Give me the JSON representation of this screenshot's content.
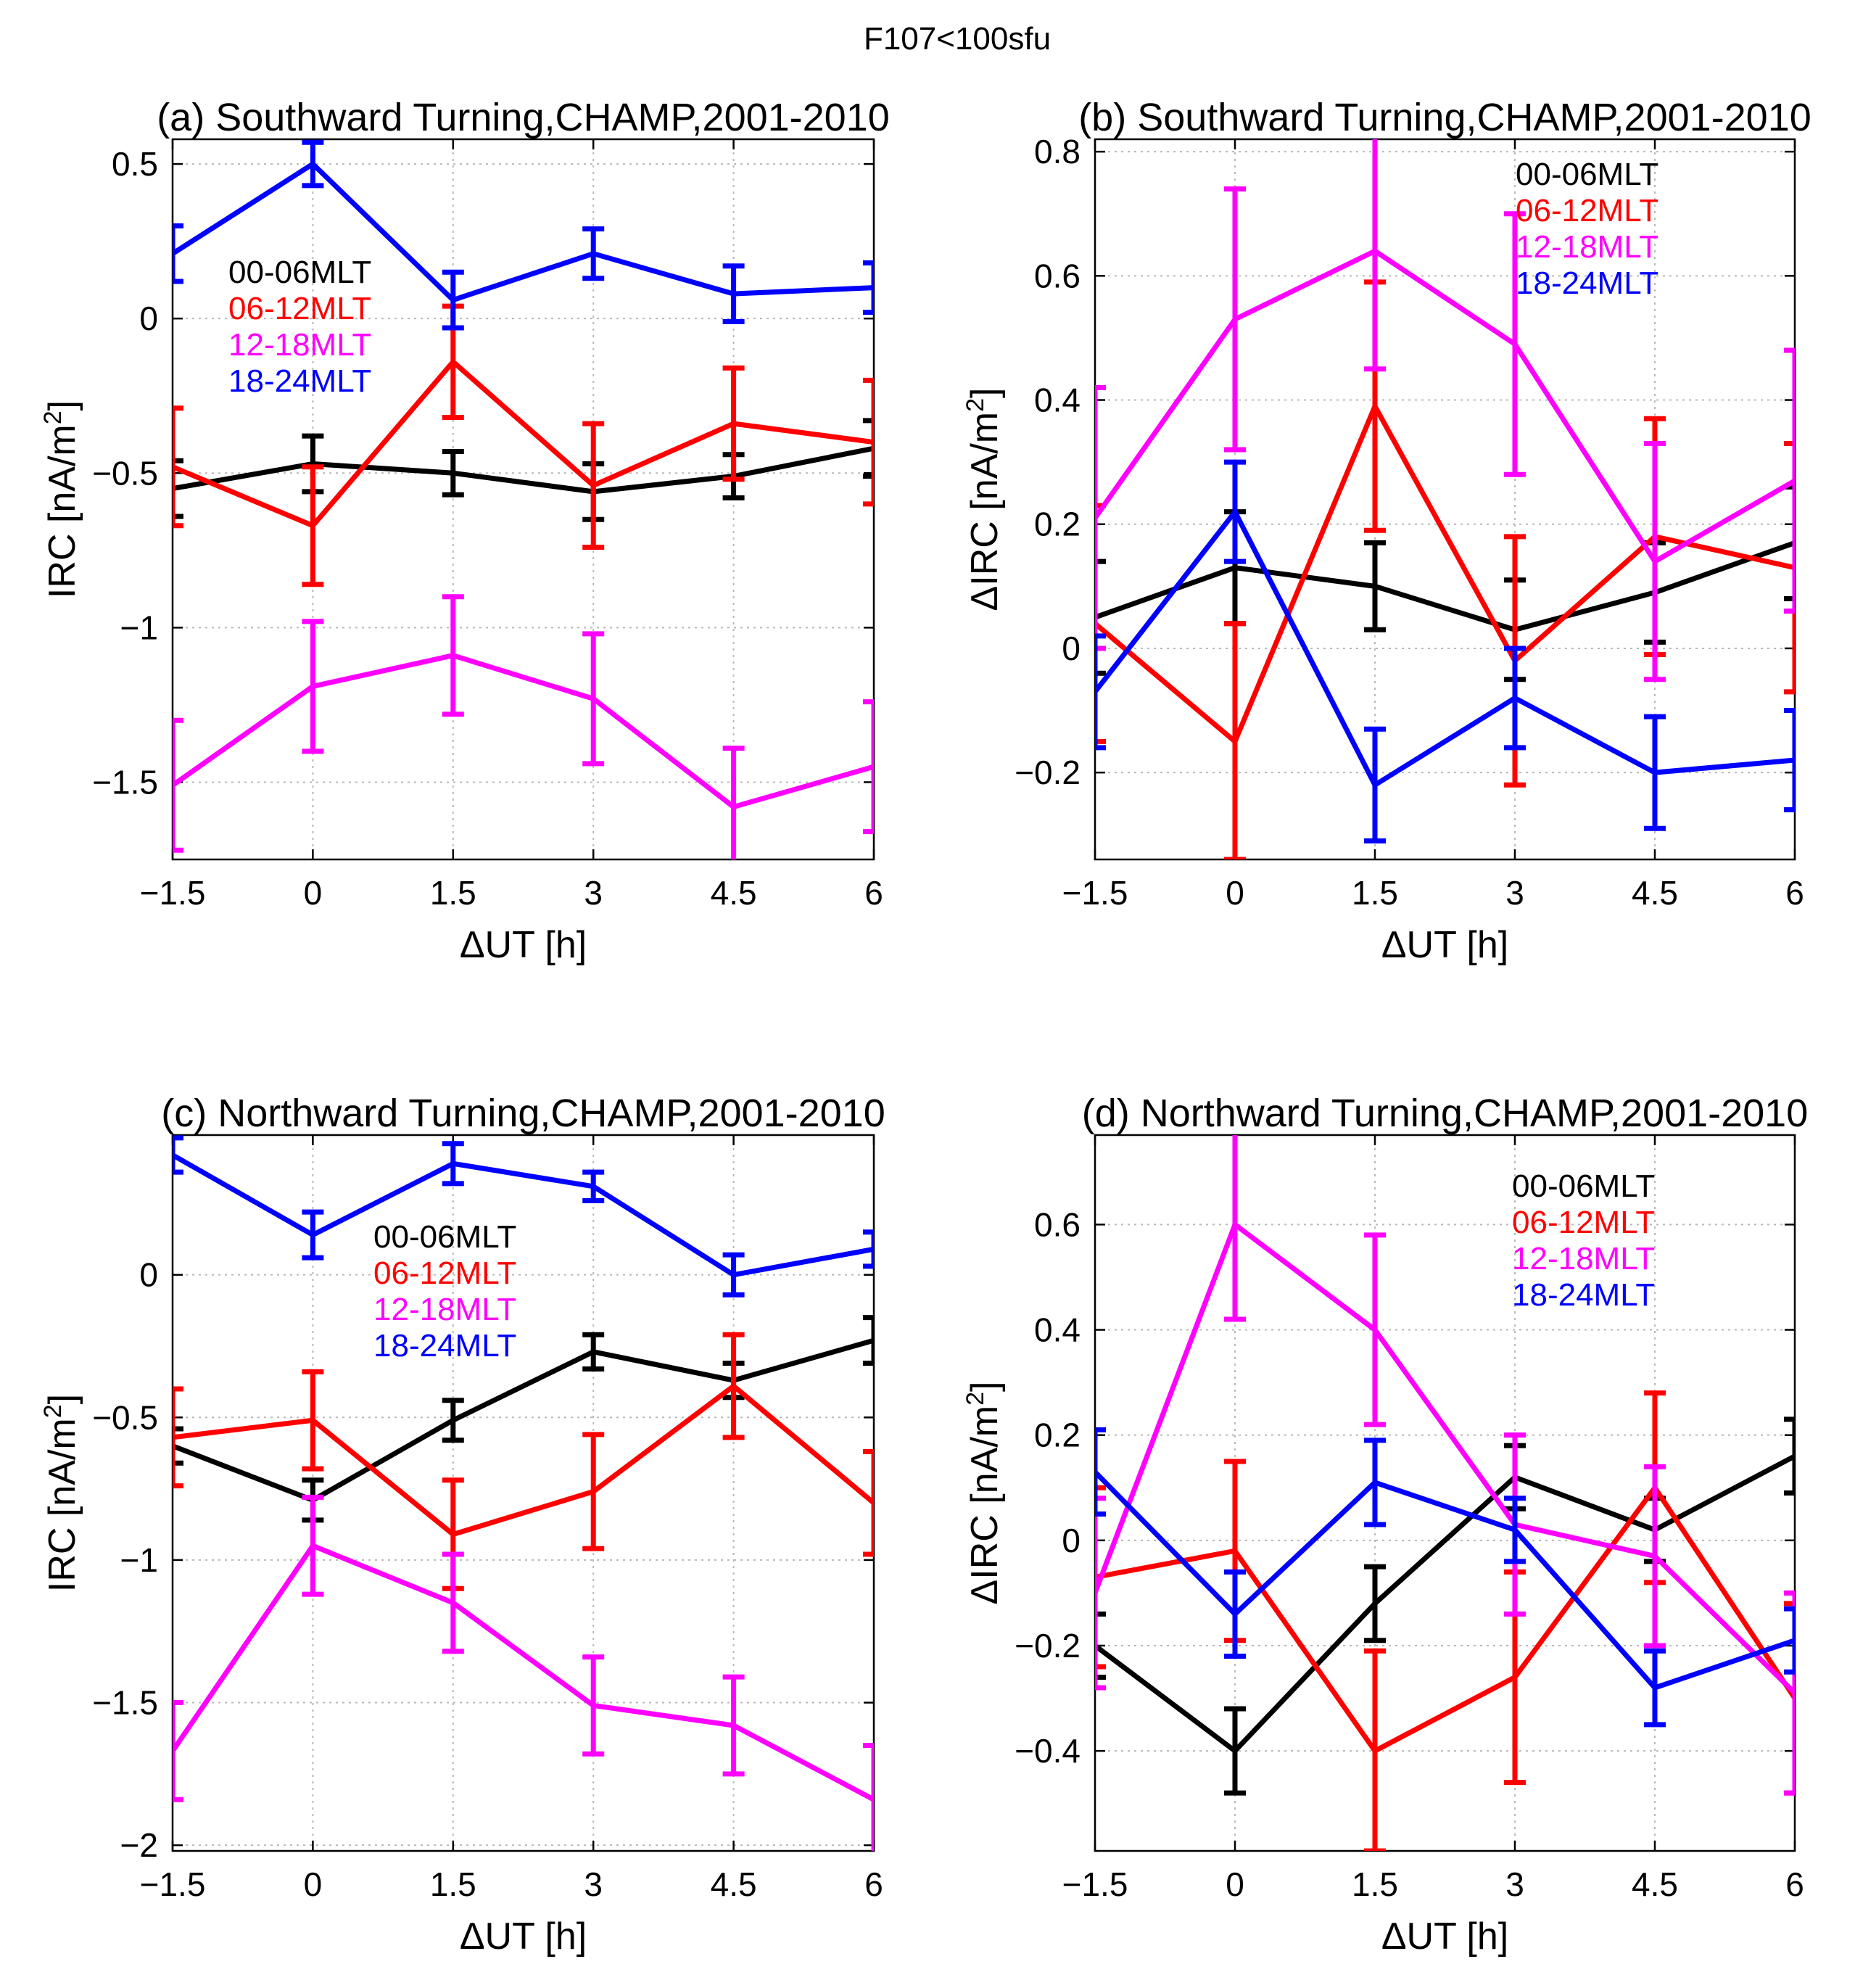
{
  "figure": {
    "suptitle": "F107<100sfu"
  },
  "legend_labels": [
    "00-06MLT",
    "06-12MLT",
    "12-18MLT",
    "18-24MLT"
  ],
  "series_colors": [
    "#000000",
    "#ff0000",
    "#ff00ff",
    "#0000ff"
  ],
  "chart_data": [
    {
      "id": "a",
      "type": "line",
      "title": "(a) Southward Turning,CHAMP,2001-2010",
      "xlabel": "ΔUT [h]",
      "ylabel_main": "IRC [nA/m",
      "ylabel_sup": "2",
      "ylabel_tail": "]",
      "x": [
        -1.5,
        0,
        1.5,
        3,
        4.5,
        6
      ],
      "xlim": [
        -1.5,
        6
      ],
      "ylim": [
        -1.75,
        0.58
      ],
      "xticks": [
        -1.5,
        0,
        1.5,
        3,
        4.5,
        6
      ],
      "xtick_labels": [
        "−1.5",
        "0",
        "1.5",
        "3",
        "4.5",
        "6"
      ],
      "yticks": [
        -1.5,
        -1,
        -0.5,
        0,
        0.5
      ],
      "ytick_labels": [
        "−1.5",
        "−1",
        "−0.5",
        "0",
        "0.5"
      ],
      "grid": true,
      "legend_location": "upper-left",
      "series": [
        {
          "name": "00-06MLT",
          "values": [
            -0.55,
            -0.47,
            -0.5,
            -0.56,
            -0.51,
            -0.42
          ],
          "err": [
            0.09,
            0.09,
            0.07,
            0.09,
            0.07,
            0.09
          ]
        },
        {
          "name": "06-12MLT",
          "values": [
            -0.48,
            -0.67,
            -0.14,
            -0.54,
            -0.34,
            -0.4
          ],
          "err": [
            0.19,
            0.19,
            0.18,
            0.2,
            0.18,
            0.2
          ]
        },
        {
          "name": "12-18MLT",
          "values": [
            -1.51,
            -1.19,
            -1.09,
            -1.23,
            -1.58,
            -1.45
          ],
          "err": [
            0.21,
            0.21,
            0.19,
            0.21,
            0.19,
            0.21
          ]
        },
        {
          "name": "18-24MLT",
          "values": [
            0.21,
            0.5,
            0.06,
            0.21,
            0.08,
            0.1
          ],
          "err": [
            0.09,
            0.07,
            0.09,
            0.08,
            0.09,
            0.08
          ]
        }
      ]
    },
    {
      "id": "b",
      "type": "line",
      "title": "(b) Southward Turning,CHAMP,2001-2010",
      "xlabel": "ΔUT [h]",
      "ylabel_main": "ΔIRC [nA/m",
      "ylabel_sup": "2",
      "ylabel_tail": "]",
      "x": [
        -1.5,
        0,
        1.5,
        3,
        4.5,
        6
      ],
      "xlim": [
        -1.5,
        6
      ],
      "ylim": [
        -0.34,
        0.82
      ],
      "xticks": [
        -1.5,
        0,
        1.5,
        3,
        4.5,
        6
      ],
      "xtick_labels": [
        "−1.5",
        "0",
        "1.5",
        "3",
        "4.5",
        "6"
      ],
      "yticks": [
        -0.2,
        0,
        0.2,
        0.4,
        0.6,
        0.8
      ],
      "ytick_labels": [
        "−0.2",
        "0",
        "0.2",
        "0.4",
        "0.6",
        "0.8"
      ],
      "grid": true,
      "legend_location": "upper-right",
      "series": [
        {
          "name": "00-06MLT",
          "values": [
            0.05,
            0.13,
            0.1,
            0.03,
            0.09,
            0.17
          ],
          "err": [
            0.09,
            0.09,
            0.07,
            0.08,
            0.08,
            0.09
          ]
        },
        {
          "name": "06-12MLT",
          "values": [
            0.04,
            -0.15,
            0.39,
            -0.02,
            0.18,
            0.13
          ],
          "err": [
            0.19,
            0.19,
            0.2,
            0.2,
            0.19,
            0.2
          ]
        },
        {
          "name": "12-18MLT",
          "values": [
            0.21,
            0.53,
            0.64,
            0.49,
            0.14,
            0.27
          ],
          "err": [
            0.21,
            0.21,
            0.19,
            0.21,
            0.19,
            0.21
          ]
        },
        {
          "name": "18-24MLT",
          "values": [
            -0.07,
            0.22,
            -0.22,
            -0.08,
            -0.2,
            -0.18
          ],
          "err": [
            0.09,
            0.08,
            0.09,
            0.08,
            0.09,
            0.08
          ]
        }
      ]
    },
    {
      "id": "c",
      "type": "line",
      "title": "(c) Northward Turning,CHAMP,2001-2010",
      "xlabel": "ΔUT [h]",
      "ylabel_main": "IRC [nA/m",
      "ylabel_sup": "2",
      "ylabel_tail": "]",
      "x": [
        -1.5,
        0,
        1.5,
        3,
        4.5,
        6
      ],
      "xlim": [
        -1.5,
        6
      ],
      "ylim": [
        -2.02,
        0.49
      ],
      "xticks": [
        -1.5,
        0,
        1.5,
        3,
        4.5,
        6
      ],
      "xtick_labels": [
        "−1.5",
        "0",
        "1.5",
        "3",
        "4.5",
        "6"
      ],
      "yticks": [
        -2,
        -1.5,
        -1,
        -0.5,
        0
      ],
      "ytick_labels": [
        "−2",
        "−1.5",
        "−1",
        "−0.5",
        "0"
      ],
      "grid": true,
      "legend_location": "upper-center",
      "series": [
        {
          "name": "00-06MLT",
          "values": [
            -0.6,
            -0.79,
            -0.51,
            -0.27,
            -0.37,
            -0.23
          ],
          "err": [
            0.06,
            0.07,
            0.07,
            0.06,
            0.06,
            0.08
          ]
        },
        {
          "name": "06-12MLT",
          "values": [
            -0.57,
            -0.51,
            -0.91,
            -0.76,
            -0.39,
            -0.8
          ],
          "err": [
            0.17,
            0.17,
            0.19,
            0.2,
            0.18,
            0.18
          ]
        },
        {
          "name": "12-18MLT",
          "values": [
            -1.67,
            -0.95,
            -1.15,
            -1.51,
            -1.58,
            -1.84
          ],
          "err": [
            0.17,
            0.17,
            0.17,
            0.17,
            0.17,
            0.19
          ]
        },
        {
          "name": "18-24MLT",
          "values": [
            0.42,
            0.14,
            0.39,
            0.31,
            0.0,
            0.09
          ],
          "err": [
            0.06,
            0.08,
            0.07,
            0.05,
            0.07,
            0.06
          ]
        }
      ]
    },
    {
      "id": "d",
      "type": "line",
      "title": "(d) Northward Turning,CHAMP,2001-2010",
      "xlabel": "ΔUT [h]",
      "ylabel_main": "ΔIRC [nA/m",
      "ylabel_sup": "2",
      "ylabel_tail": "]",
      "x": [
        -1.5,
        0,
        1.5,
        3,
        4.5,
        6
      ],
      "xlim": [
        -1.5,
        6
      ],
      "ylim": [
        -0.59,
        0.77
      ],
      "xticks": [
        -1.5,
        0,
        1.5,
        3,
        4.5,
        6
      ],
      "xtick_labels": [
        "−1.5",
        "0",
        "1.5",
        "3",
        "4.5",
        "6"
      ],
      "yticks": [
        -0.4,
        -0.2,
        0,
        0.2,
        0.4,
        0.6
      ],
      "ytick_labels": [
        "−0.4",
        "−0.2",
        "0",
        "0.2",
        "0.4",
        "0.6"
      ],
      "grid": true,
      "legend_location": "upper-right",
      "series": [
        {
          "name": "00-06MLT",
          "values": [
            -0.2,
            -0.4,
            -0.12,
            0.12,
            0.02,
            0.16
          ],
          "err": [
            0.06,
            0.08,
            0.07,
            0.06,
            0.06,
            0.07
          ]
        },
        {
          "name": "06-12MLT",
          "values": [
            -0.07,
            -0.02,
            -0.4,
            -0.26,
            0.1,
            -0.3
          ],
          "err": [
            0.17,
            0.17,
            0.19,
            0.2,
            0.18,
            0.18
          ]
        },
        {
          "name": "12-18MLT",
          "values": [
            -0.1,
            0.6,
            0.4,
            0.03,
            -0.03,
            -0.29
          ],
          "err": [
            0.18,
            0.18,
            0.18,
            0.17,
            0.17,
            0.19
          ]
        },
        {
          "name": "18-24MLT",
          "values": [
            0.13,
            -0.14,
            0.11,
            0.02,
            -0.28,
            -0.19
          ],
          "err": [
            0.08,
            0.08,
            0.08,
            0.06,
            0.07,
            0.06
          ]
        }
      ]
    }
  ]
}
